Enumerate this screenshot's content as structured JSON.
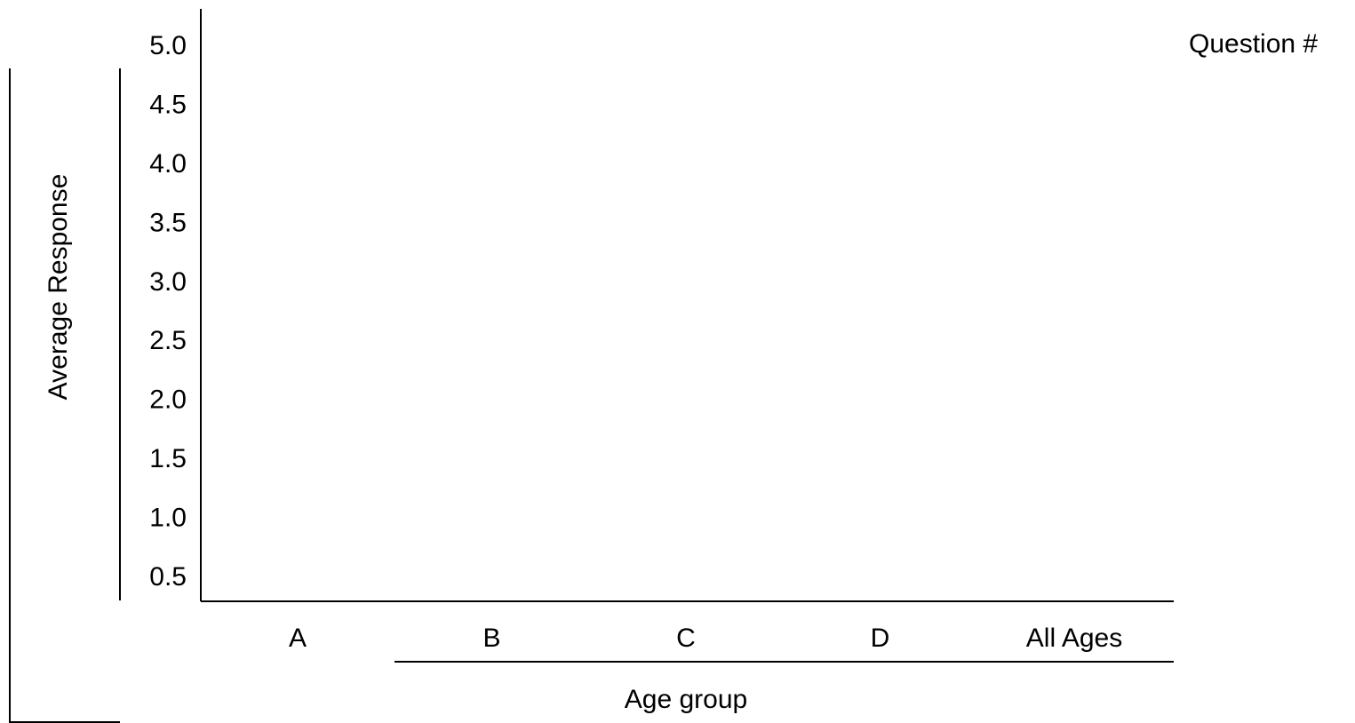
{
  "chart_data": {
    "type": "bar",
    "title": "",
    "xlabel": "Age group",
    "ylabel": "Average Response",
    "legend_title": "Question #",
    "categories": [
      "A",
      "B",
      "C",
      "D",
      "All Ages"
    ],
    "series": [],
    "yticks": [
      "0.5",
      "1.0",
      "1.5",
      "2.0",
      "2.5",
      "3.0",
      "3.5",
      "4.0",
      "4.5",
      "5.0"
    ],
    "ylim": [
      0.5,
      5.0
    ],
    "grid": false,
    "legend_position": "top-right"
  }
}
